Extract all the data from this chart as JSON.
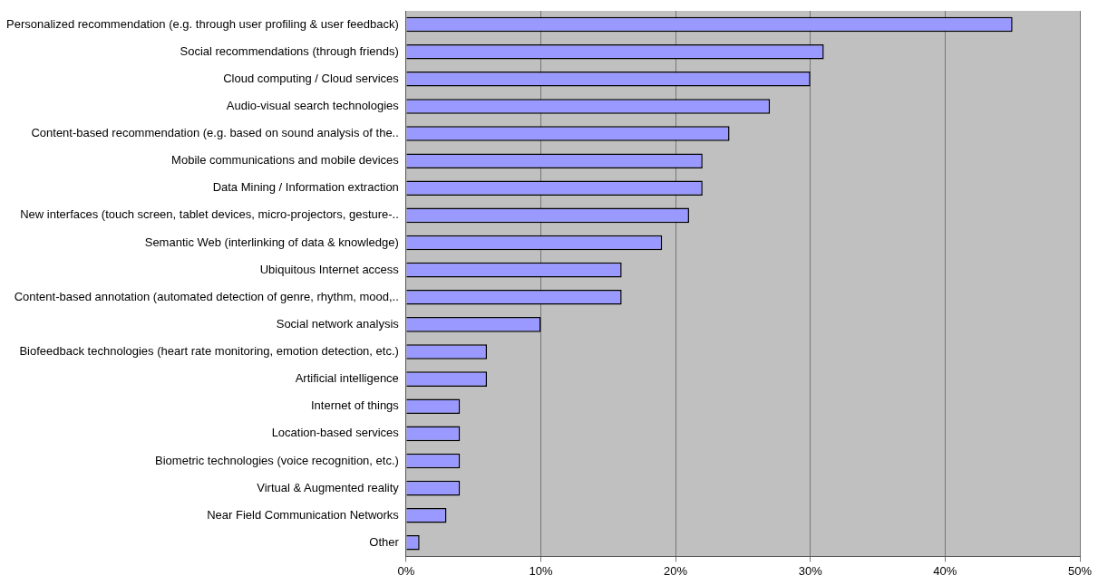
{
  "chart_data": {
    "type": "bar",
    "orientation": "horizontal",
    "categories": [
      "Personalized recommendation (e.g. through user profiling & user feedback)",
      "Social recommendations (through friends)",
      "Cloud computing / Cloud services",
      "Audio-visual search technologies",
      "Content-based recommendation (e.g. based on sound analysis of the..",
      "Mobile communications and mobile devices",
      "Data Mining / Information extraction",
      "New interfaces (touch screen, tablet devices, micro-projectors, gesture-..",
      "Semantic Web (interlinking of data & knowledge)",
      "Ubiquitous Internet access",
      "Content-based annotation (automated detection of genre, rhythm, mood,..",
      "Social network analysis",
      "Biofeedback technologies (heart rate monitoring, emotion detection, etc.)",
      "Artificial intelligence",
      "Internet of things",
      "Location-based services",
      "Biometric technologies (voice recognition, etc.)",
      "Virtual & Augmented reality",
      "Near Field Communication Networks",
      "Other"
    ],
    "values": [
      45,
      31,
      30,
      27,
      24,
      22,
      22,
      21,
      19,
      16,
      16,
      10,
      6,
      6,
      4,
      4,
      4,
      4,
      3,
      1
    ],
    "color": "#9999ff",
    "xlim": [
      0,
      50
    ],
    "xticks": [
      {
        "value": 0,
        "label": "0%"
      },
      {
        "value": 10,
        "label": "10%"
      },
      {
        "value": 20,
        "label": "20%"
      },
      {
        "value": 30,
        "label": "30%"
      },
      {
        "value": 40,
        "label": "40%"
      },
      {
        "value": 50,
        "label": "50%"
      }
    ],
    "grid": "x",
    "legend": false
  }
}
